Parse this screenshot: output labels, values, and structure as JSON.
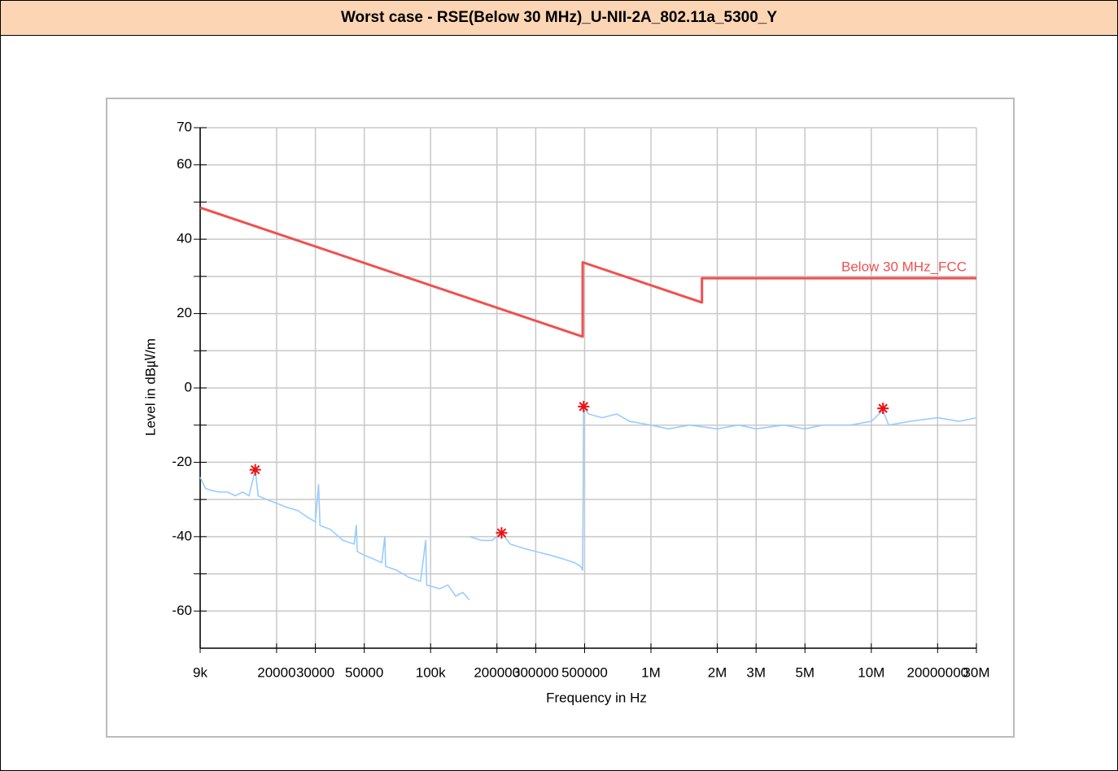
{
  "header": {
    "title": "Worst  case  -  RSE(Below  30  MHz)_U-NII-2A_802.11a_5300_Y"
  },
  "chart_data": {
    "type": "line",
    "xlabel": "Frequency in Hz",
    "ylabel": "Level in dB㎶/m",
    "xscale": "log",
    "grid": true,
    "xlim": [
      9000,
      30000000
    ],
    "ylim": [
      -70,
      70
    ],
    "xticks": [
      {
        "value": 9000,
        "label": "9k"
      },
      20000,
      30000,
      50000,
      {
        "value": 100000,
        "label": "100k"
      },
      200000,
      300000,
      500000,
      {
        "value": 1000000,
        "label": "1M"
      },
      {
        "value": 2000000,
        "label": "2M"
      },
      {
        "value": 3000000,
        "label": "3M"
      },
      {
        "value": 5000000,
        "label": "5M"
      },
      {
        "value": 10000000,
        "label": "10M"
      },
      20000000,
      {
        "value": 30000000,
        "label": "30M"
      }
    ],
    "yticks": [
      70,
      60,
      40,
      20,
      0,
      -20,
      -40,
      -60
    ],
    "minor_yticks": [
      50,
      30,
      10,
      -10,
      -30,
      -50
    ],
    "series": [
      {
        "name": "Below 30 MHz_FCC",
        "kind": "line",
        "color": "#f05050",
        "x": [
          9000,
          490000,
          490000,
          1705000,
          1705000,
          30000000
        ],
        "values": [
          48.5,
          13.8,
          33.8,
          23.0,
          29.5,
          29.5
        ]
      },
      {
        "kind": "line",
        "color": "#99ccff",
        "x": [
          9000,
          9500,
          10000,
          11000,
          12000,
          13000,
          14000,
          15000,
          16000,
          16500,
          18000,
          20000,
          22000,
          25000,
          28000,
          30000,
          31000,
          31500,
          35000,
          40000,
          45000,
          46000,
          46500,
          50000,
          55000,
          60000,
          62000,
          62500,
          70000,
          80000,
          90000,
          95000,
          96000,
          110000,
          120000,
          130000,
          140000,
          150000,
          null,
          150000,
          170000,
          190000,
          210000,
          230000,
          260000,
          300000,
          350000,
          400000,
          450000,
          480000,
          490000,
          495000,
          520000,
          600000,
          700000,
          800000,
          1000000,
          1200000,
          1500000,
          2000000,
          2500000,
          3000000,
          4000000,
          5000000,
          6000000,
          8000000,
          10000000,
          11300000,
          12000000,
          15000000,
          20000000,
          25000000,
          30000000
        ],
        "values": [
          -24,
          -27,
          -27.5,
          -28,
          -28,
          -29,
          -28,
          -29,
          -22,
          -29,
          -30,
          -31,
          -32,
          -33,
          -35,
          -36,
          -26,
          -37,
          -38,
          -41,
          -42,
          -37,
          -44,
          -45,
          -46,
          -47,
          -40,
          -48,
          -49,
          -51,
          -52,
          -41,
          -53,
          -54,
          -53,
          -56,
          -55,
          -57,
          null,
          -40,
          -41,
          -41,
          -39,
          -42,
          -43,
          -44,
          -45,
          -46,
          -47,
          -48,
          -49,
          -5,
          -7,
          -8,
          -7,
          -9,
          -10,
          -11,
          -10,
          -11,
          -10,
          -11,
          -10,
          -11,
          -10,
          -10,
          -9,
          -6,
          -10,
          -9,
          -8,
          -9,
          -8
        ]
      },
      {
        "kind": "scatter",
        "color": "#ee1111",
        "x": [
          16000,
          210000,
          495000,
          11300000
        ],
        "values": [
          -22,
          -39,
          -5,
          -5.5
        ]
      }
    ]
  }
}
